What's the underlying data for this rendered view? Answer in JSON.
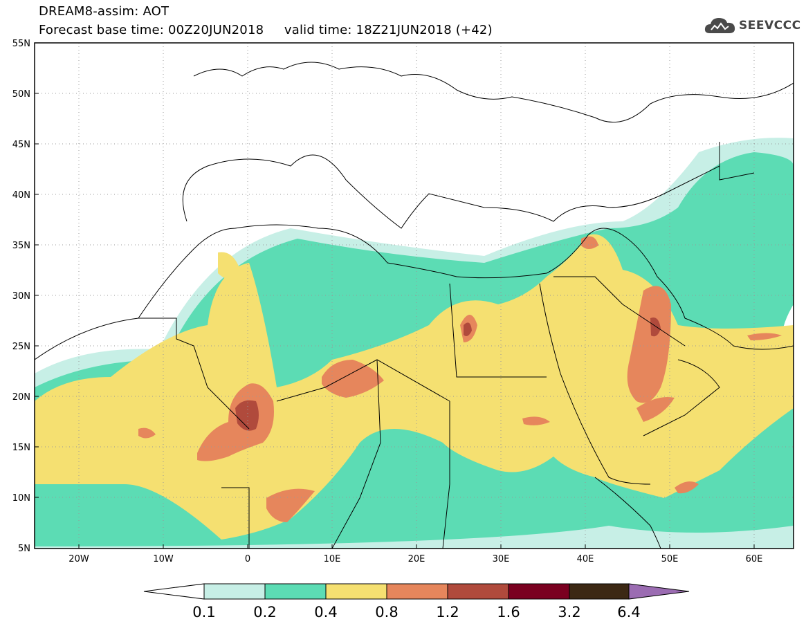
{
  "header": {
    "title": "DREAM8-assim: AOT",
    "subtitle": "Forecast base time: 00Z20JUN2018     valid time: 18Z21JUN2018 (+42)"
  },
  "logo": {
    "text": "SEEVCCC",
    "icon": "cloud-icon"
  },
  "map": {
    "lat_labels": [
      "55N",
      "50N",
      "45N",
      "40N",
      "35N",
      "30N",
      "25N",
      "20N",
      "15N",
      "10N",
      "5N"
    ],
    "lon_labels": [
      "20W",
      "10W",
      "0",
      "10E",
      "20E",
      "30E",
      "40E",
      "50E",
      "60E"
    ]
  },
  "colorbar": {
    "labels": [
      "0.1",
      "0.2",
      "0.4",
      "0.8",
      "1.2",
      "1.6",
      "3.2",
      "6.4"
    ],
    "colors": [
      "#ffffff",
      "#c7efe6",
      "#5cdcb4",
      "#f5e071",
      "#e6865c",
      "#b04a3c",
      "#7a0020",
      "#3c2814",
      "#9b6cb2"
    ]
  }
}
